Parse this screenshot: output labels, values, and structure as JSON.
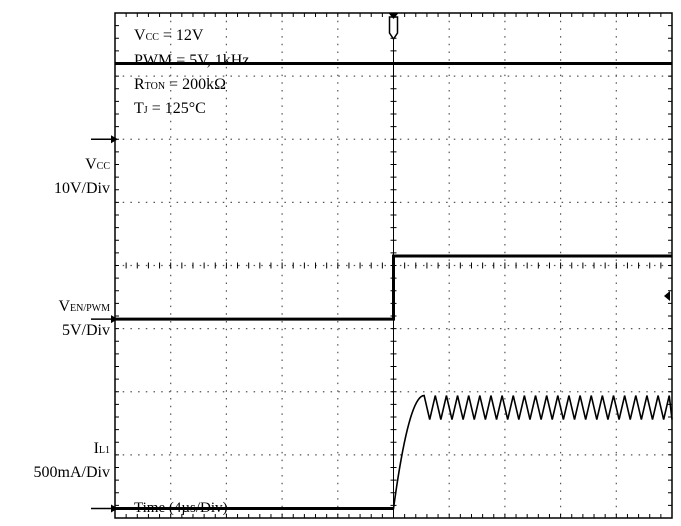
{
  "chart_data": {
    "type": "line",
    "annotations": {
      "vcc": {
        "main": "V",
        "sub": "CC",
        "rest": " = 12V"
      },
      "pwm": "PWM = 5V, 1kHz",
      "rton": {
        "main": "R",
        "sub": "TON",
        "rest": " = 200kΩ"
      },
      "tj": {
        "main": "T",
        "sub": "J",
        "rest": " = 125°C"
      }
    },
    "xlabel": "Time (4µs/Div)",
    "x_divisions": 10,
    "y_divisions": 8,
    "trigger_div": 5,
    "series": [
      {
        "label_main": "V",
        "label_sub": "CC",
        "scale": "10V/Div",
        "ground_div": 6,
        "x": [
          0,
          10
        ],
        "y": [
          12,
          12
        ]
      },
      {
        "label_main": "V",
        "label_sub": "EN/PWM",
        "scale": "5V/Div",
        "ground_div": 3.15,
        "x": [
          0,
          5,
          5,
          10
        ],
        "y": [
          0,
          0,
          5,
          5
        ]
      },
      {
        "label_main": "I",
        "label_sub": "L1",
        "scale": "500mA/Div",
        "ground_div": 0.15,
        "rise_start": 5.0,
        "rise_end": 5.55,
        "ripple_mean_div": 1.75,
        "ripple_pp_div": 0.38,
        "ripple_period_div": 0.2
      }
    ]
  }
}
